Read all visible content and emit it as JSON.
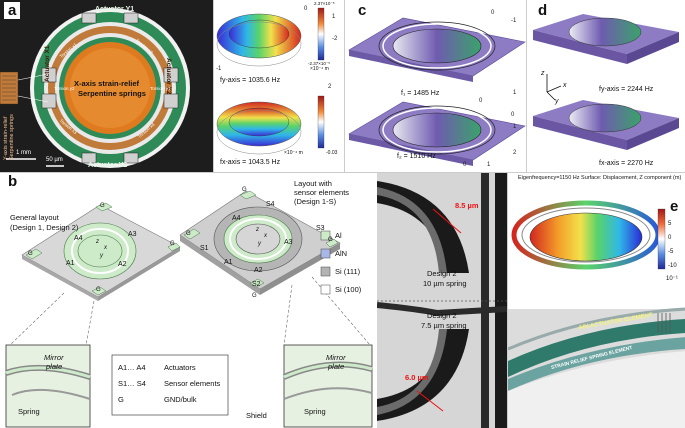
{
  "panel_labels": {
    "a": "a",
    "b": "b",
    "c": "c",
    "d": "d",
    "e": "e"
  },
  "panel_a": {
    "actuator_y1": "Actuator Y1",
    "actuator_y2": "Actuator Y2",
    "actuator_x1": "Actuator X1",
    "actuator_x2": "Actuator X2",
    "center_title": "X-axis strain-relief",
    "center_sub": "Serpentine springs",
    "left_vertical": "Y-axis strain-relief\nSerpentine springs",
    "scale_1mm": "1 mm",
    "scale_50um": "50 µm",
    "spring_tags": [
      "Torsion x1",
      "Torsion x2",
      "Torsion x3",
      "Torsion x4",
      "Torsion y1",
      "Torsion y2"
    ]
  },
  "panel_a_sims": {
    "top_freq": "fy-axis = 1035.6 Hz",
    "bottom_freq": "fx-axis = 1043.5 Hz",
    "top_scale": "×10⁻⁴ m",
    "bottom_scale": "×10⁻⁴ m",
    "top_cb_max": "2.37×10⁻⁵",
    "top_cb_min": "-2.37×10⁻⁵",
    "bottom_cb_min": "-0.03",
    "axis_ticks": [
      "0",
      "-1",
      "-2",
      "1",
      "2"
    ]
  },
  "panel_c": {
    "f1": "f₁ = 1485 Hz",
    "f2": "f₂ = 1510 Hz",
    "ticks_top": [
      "0",
      "-1",
      "1",
      "0"
    ],
    "ticks_bottom": [
      "0",
      "1",
      "2",
      "0",
      "1"
    ]
  },
  "panel_d": {
    "f_top": "fy-axis = 2244 Hz",
    "f_bottom": "fx-axis = 2270 Hz",
    "axis_z": "z",
    "axis_x": "x",
    "axis_y": "y"
  },
  "panel_b": {
    "layout_general_1": "General layout",
    "layout_general_2": "(Design 1, Design 2)",
    "layout_sensor_1": "Layout with",
    "layout_sensor_2": "sensor elements",
    "layout_sensor_3": "(Design 1-S)",
    "legend": [
      {
        "label": "Al",
        "color": "#cdeac9"
      },
      {
        "label": "AlN",
        "color": "#a9b6e8"
      },
      {
        "label": "Si (111)",
        "color": "#b3b3b3"
      },
      {
        "label": "Si (100)",
        "color": "#ffffff"
      }
    ],
    "key_rows": [
      {
        "k": "A1… A4",
        "v": "Actuators"
      },
      {
        "k": "S1… S4",
        "v": "Sensor elements"
      },
      {
        "k": "G",
        "v": "GND/bulk"
      }
    ],
    "chip1_labels": [
      "A1",
      "A2",
      "A3",
      "A4",
      "G",
      "G",
      "G",
      "G",
      "z",
      "x",
      "y"
    ],
    "chip2_labels": [
      "A1",
      "A2",
      "A3",
      "A4",
      "S1",
      "S2",
      "S3",
      "S4",
      "G",
      "G",
      "G",
      "G",
      "z",
      "x",
      "y"
    ],
    "zoom_left_mirror": "Mirror",
    "zoom_left_plate": "plate",
    "zoom_left_spring": "Spring",
    "zoom_right_mirror": "Mirror",
    "zoom_right_plate": "plate",
    "zoom_right_spring": "Spring",
    "shield": "Shield"
  },
  "panel_micro": {
    "top_meas": "8.5 µm",
    "top_design": "Design 2",
    "top_spring": "10 µm spring",
    "bottom_design": "Design 2",
    "bottom_spring": "7.5 µm spring",
    "bottom_meas": "6.0 µm"
  },
  "panel_e": {
    "header": "Eigenfrequency=1150 Hz Surface: Displacement, Z component (m)",
    "cb_ticks": [
      "10",
      "5",
      "0",
      "-5",
      "-10"
    ],
    "cb_exp": "10⁻¹",
    "actuator_text": "AlN ACTUATOR ELEMENT",
    "spring_text": "STRAIN RELIEF SPRING ELEMENT"
  },
  "colors": {
    "green_ring": "#2e8b57",
    "orange": "#e07a1f",
    "purple": "#8d7cc3",
    "chip_green": "#cdeac9"
  }
}
